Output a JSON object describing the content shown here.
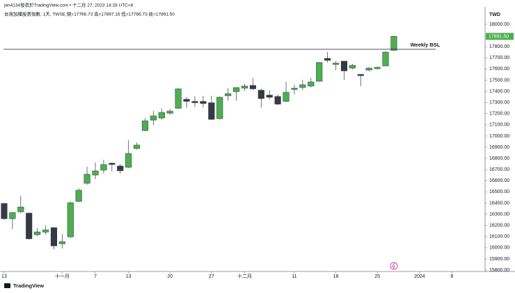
{
  "header": {
    "line1": "jen4134發表於TradingView.com • 十二月 27, 2023 14:28 UTC+8",
    "line2": "台灣加權股票指數, 1天, TWSE  開=17766.73 高=17897.16 低=17766.73 收=17891.50"
  },
  "watermark": "TradingView",
  "chart_data": {
    "type": "candlestick",
    "currency": "TWD",
    "up_color": "#4caf50",
    "down_color": "#363a45",
    "open": [
      16397,
      16260,
      16322,
      16310,
      16117,
      16140,
      16180,
      16036,
      16098,
      16415,
      16577,
      16651,
      16695,
      16757,
      16732,
      16720,
      16888,
      17049,
      17142,
      17161,
      17204,
      17248,
      17329,
      17310,
      17310,
      17298,
      17155,
      17360,
      17397,
      17428,
      17453,
      17410,
      17366,
      17354,
      17310,
      17416,
      17434,
      17447,
      17490,
      17695,
      17640,
      17670,
      17608,
      17552,
      17590,
      17602,
      17627,
      17766.73
    ],
    "high": [
      16400,
      16320,
      16465,
      16315,
      16178,
      16200,
      16185,
      16123,
      16415,
      16533,
      16726,
      16763,
      16788,
      16763,
      16750,
      16962,
      16943,
      17161,
      17223,
      17248,
      17242,
      17428,
      17347,
      17354,
      17360,
      17360,
      17354,
      17428,
      17434,
      17466,
      17521,
      17422,
      17410,
      17372,
      17484,
      17459,
      17503,
      17521,
      17664,
      17751,
      17670,
      17670,
      17646,
      17552,
      17615,
      17621,
      17758,
      17897.16
    ],
    "low": [
      16250,
      16167,
      16310,
      16075,
      16105,
      16117,
      15986,
      15993,
      16086,
      16410,
      16565,
      16614,
      16664,
      16682,
      16664,
      16713,
      16880,
      17043,
      17099,
      17148,
      17192,
      17242,
      17254,
      17260,
      17254,
      17142,
      17149,
      17316,
      17316,
      17403,
      17410,
      17254,
      17329,
      17279,
      17304,
      17372,
      17410,
      17434,
      17484,
      17658,
      17590,
      17503,
      17596,
      17447,
      17578,
      17596,
      17627,
      17766.73
    ],
    "close": [
      16260,
      16316,
      16365,
      16080,
      16142,
      16160,
      16017,
      16055,
      16403,
      16515,
      16658,
      16688,
      16745,
      16745,
      16689,
      16844,
      16919,
      17136,
      17180,
      17211,
      17223,
      17422,
      17310,
      17298,
      17291,
      17149,
      17347,
      17379,
      17434,
      17447,
      17422,
      17335,
      17347,
      17285,
      17391,
      17428,
      17459,
      17484,
      17658,
      17677,
      17652,
      17583,
      17633,
      17540,
      17608,
      17615,
      17751,
      17891.5
    ],
    "last_price": {
      "value": 17891.5,
      "label": "17891.50"
    },
    "annotation": {
      "value": 17776,
      "label": "Weekly BSL"
    },
    "xlim": [
      -0.5,
      58
    ],
    "xticks": [
      {
        "value": 0,
        "label": "13"
      },
      {
        "value": 7,
        "label": "十一月"
      },
      {
        "value": 11,
        "label": "7"
      },
      {
        "value": 15,
        "label": "13"
      },
      {
        "value": 20,
        "label": "20"
      },
      {
        "value": 25,
        "label": "27"
      },
      {
        "value": 29,
        "label": "十二月"
      },
      {
        "value": 35,
        "label": "11"
      },
      {
        "value": 40,
        "label": "18"
      },
      {
        "value": 45,
        "label": "25"
      },
      {
        "value": 50.1,
        "label": "2024"
      },
      {
        "value": 54,
        "label": "8"
      }
    ],
    "ylim": [
      15788,
      18155
    ],
    "yticks": [
      {
        "value": 15800,
        "label": "15800.00"
      },
      {
        "value": 15900,
        "label": "15900.00"
      },
      {
        "value": 16000,
        "label": "16000.00"
      },
      {
        "value": 16100,
        "label": "16100.00"
      },
      {
        "value": 16200,
        "label": "16200.00"
      },
      {
        "value": 16300,
        "label": "16300.00"
      },
      {
        "value": 16400,
        "label": "16400.00"
      },
      {
        "value": 16500,
        "label": "16500.00"
      },
      {
        "value": 16600,
        "label": "16600.00"
      },
      {
        "value": 16700,
        "label": "16700.00"
      },
      {
        "value": 16800,
        "label": "16800.00"
      },
      {
        "value": 16900,
        "label": "16900.00"
      },
      {
        "value": 17000,
        "label": "17000.00"
      },
      {
        "value": 17100,
        "label": "17100.00"
      },
      {
        "value": 17200,
        "label": "17200.00"
      },
      {
        "value": 17300,
        "label": "17300.00"
      },
      {
        "value": 17400,
        "label": "17400.00"
      },
      {
        "value": 17500,
        "label": "17500.00"
      },
      {
        "value": 17600,
        "label": "17600.00"
      },
      {
        "value": 17700,
        "label": "17700.00"
      },
      {
        "value": 17800,
        "label": "17800.00"
      },
      {
        "value": 17900,
        "label": "17900.00"
      },
      {
        "value": 18000,
        "label": "18000.00"
      }
    ]
  }
}
